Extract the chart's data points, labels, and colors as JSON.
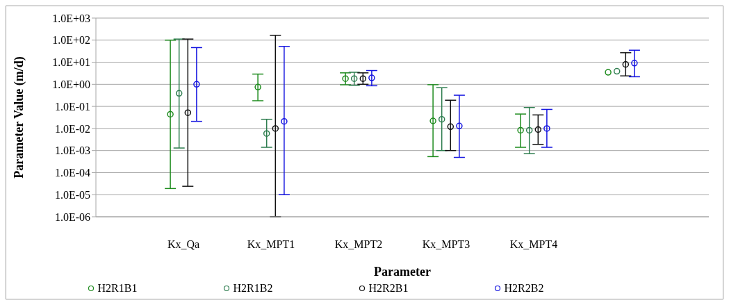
{
  "chart_data": {
    "type": "scatter",
    "xlabel": "Parameter",
    "ylabel": "Parameter Value (m/d)",
    "categories": [
      "Kx_Qa",
      "Kx_MPT1",
      "Kx_MPT2",
      "Kx_MPT3",
      "Kx_MPT4",
      null
    ],
    "series": [
      {
        "name": "H2R1B1",
        "color": "#1e8c1e",
        "values": [
          0.044,
          0.75,
          1.8,
          0.022,
          0.0083,
          3.5
        ],
        "errors": [
          [
            1.9e-05,
            100
          ],
          [
            0.18,
            2.9
          ],
          [
            0.95,
            3.3
          ],
          [
            0.00053,
            0.96
          ],
          [
            0.0014,
            0.045
          ],
          null
        ]
      },
      {
        "name": "H2R1B2",
        "color": "#2e7d4f",
        "values": [
          0.39,
          0.0059,
          1.8,
          0.026,
          0.0083,
          3.9
        ],
        "errors": [
          [
            0.0013,
            112
          ],
          [
            0.0014,
            0.026
          ],
          [
            0.9,
            3.5
          ],
          [
            0.001,
            0.7
          ],
          [
            0.00072,
            0.089
          ],
          null
        ]
      },
      {
        "name": "H2R2B1",
        "color": "#111111",
        "values": [
          0.052,
          0.01,
          1.8,
          0.012,
          0.0089,
          8.0
        ],
        "errors": [
          [
            2.4e-05,
            112
          ],
          [
            1e-06,
            165
          ],
          [
            1.0,
            3.3
          ],
          [
            0.001,
            0.19
          ],
          [
            0.0019,
            0.041
          ],
          [
            2.4,
            27
          ]
        ]
      },
      {
        "name": "H2R2B2",
        "color": "#1515e0",
        "values": [
          1.0,
          0.021,
          1.95,
          0.013,
          0.01,
          9.1
        ],
        "errors": [
          [
            0.021,
            46
          ],
          [
            1e-05,
            52
          ],
          [
            0.86,
            4.2
          ],
          [
            0.00049,
            0.32
          ],
          [
            0.0014,
            0.073
          ],
          [
            2.2,
            35
          ]
        ]
      }
    ],
    "log": "y",
    "ylim": [
      1e-06,
      1000
    ],
    "yticks": [
      {
        "value": 1e-06,
        "label": "1.0E-06"
      },
      {
        "value": 1e-05,
        "label": "1.0E-05"
      },
      {
        "value": 0.0001,
        "label": "1.0E-04"
      },
      {
        "value": 0.001,
        "label": "1.0E-03"
      },
      {
        "value": 0.01,
        "label": "1.0E-02"
      },
      {
        "value": 0.1,
        "label": "1.0E-01"
      },
      {
        "value": 1,
        "label": "1.0E+00"
      },
      {
        "value": 10,
        "label": "1.0E+01"
      },
      {
        "value": 100,
        "label": "1.0E+02"
      },
      {
        "value": 1000,
        "label": "1.0E+03"
      }
    ],
    "grid": "y",
    "legend": "bottom",
    "marker": "circle"
  }
}
